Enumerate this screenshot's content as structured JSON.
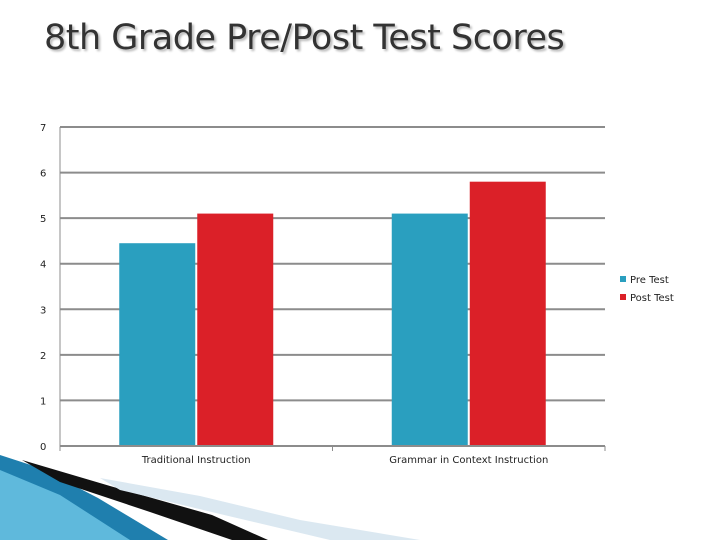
{
  "slide": {
    "title": "8th Grade Pre/Post Test Scores"
  },
  "colors": {
    "pre": "#2a9fbf",
    "post": "#db2028",
    "grid": "#8c8c8c"
  },
  "chart_data": {
    "type": "bar",
    "title": "",
    "categories": [
      "Traditional Instruction",
      "Grammar in Context Instruction"
    ],
    "series": [
      {
        "name": "Pre Test",
        "values": [
          4.45,
          5.1
        ]
      },
      {
        "name": "Post Test",
        "values": [
          5.1,
          5.8
        ]
      }
    ],
    "yticks": [
      "0",
      "1",
      "2",
      "3",
      "4",
      "5",
      "6",
      "7"
    ],
    "ylim": [
      0,
      7
    ],
    "xlabel": "",
    "ylabel": "",
    "grid": true,
    "legend_position": "right"
  }
}
